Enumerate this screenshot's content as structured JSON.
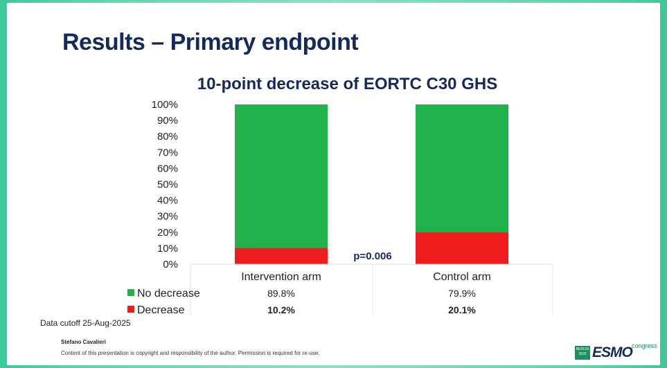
{
  "slide_title": "Results – Primary endpoint",
  "chart_data": {
    "type": "bar",
    "stacked": true,
    "title": "10-point decrease of EORTC C30 GHS",
    "categories": [
      "Intervention arm",
      "Control arm"
    ],
    "series": [
      {
        "name": "No decrease",
        "values": [
          89.8,
          79.9
        ],
        "labels": [
          "89.8%",
          "79.9%"
        ],
        "color": "#22b24c"
      },
      {
        "name": "Decrease",
        "values": [
          10.2,
          20.1
        ],
        "labels": [
          "10.2%",
          "20.1%"
        ],
        "color": "#ee1c1c"
      }
    ],
    "y_ticks": [
      "0%",
      "10%",
      "20%",
      "30%",
      "40%",
      "50%",
      "60%",
      "70%",
      "80%",
      "90%",
      "100%"
    ],
    "ylim": [
      0,
      100
    ],
    "annotation": "p=0.006",
    "legend_position": "bottom-left (data table)"
  },
  "footer": {
    "cutoff": "Data cutoff 25-Aug-2025",
    "author": "Stefano Cavalieri",
    "copyright": "Content of this presentation is copyright and responsibility of the author. Permission is required for re-use."
  },
  "logo": {
    "box_line1": "BERLIN",
    "box_line2": "2025",
    "word": "ESMO",
    "sub": "congress"
  }
}
